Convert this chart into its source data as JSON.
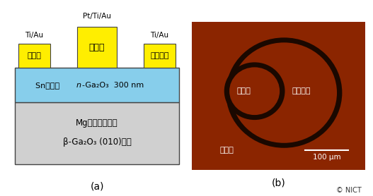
{
  "fig_width": 5.27,
  "fig_height": 2.78,
  "bg_color": "#ffffff",
  "panel_a": {
    "substrate_color": "#d0d0d0",
    "epi_color": "#87ceeb",
    "gate_color": "#ffee00",
    "border_color": "#444444",
    "label_a": "(a)",
    "source_label": "ソース",
    "gate_label": "ゲート",
    "drain_label": "ドレイン",
    "source_contact": "Ti/Au",
    "gate_contact": "Pt/Ti/Au",
    "drain_contact": "Ti/Au",
    "epi_text": "Snドープ n-Ga₂O₃  300 nm",
    "sub_text1": "Mgドープ半絶縁",
    "sub_text2": "β-Ga₂O₃ (010)基板"
  },
  "panel_b": {
    "bg_color": "#8b2500",
    "ring_color": "#1a0800",
    "label_b": "(b)",
    "gate_label": "ゲート",
    "drain_label": "ドレイン",
    "source_label": "ソース",
    "scale_label": "100 μm",
    "copyright": "© NICT"
  }
}
